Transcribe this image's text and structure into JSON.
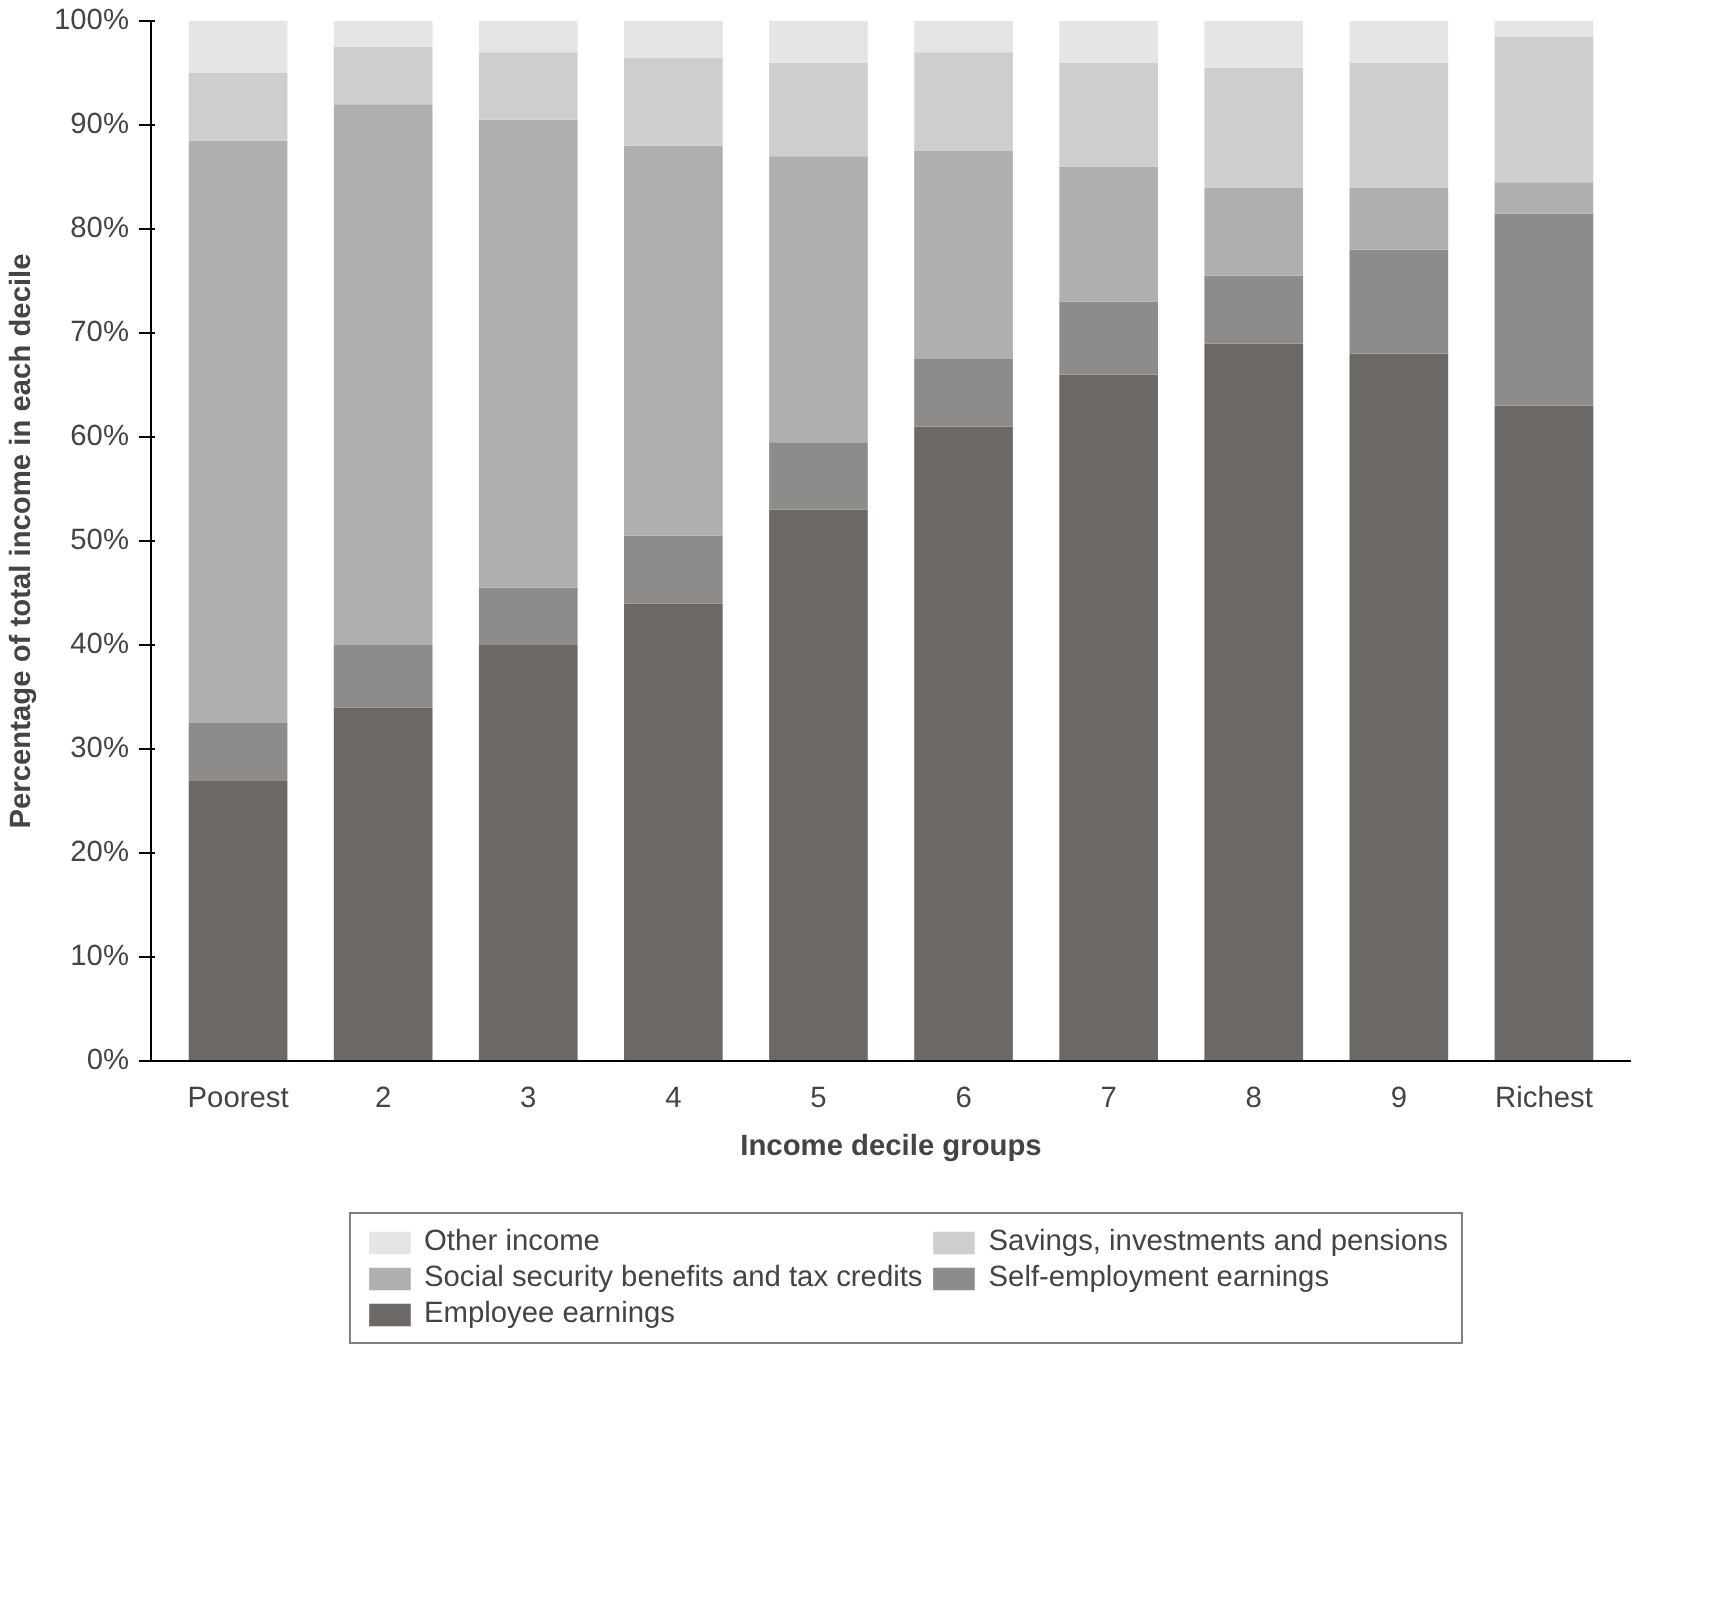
{
  "chart_data": {
    "type": "bar",
    "stacked": true,
    "xlabel": "Income decile groups",
    "ylabel": "Percentage of total income in each decile",
    "categories": [
      "Poorest",
      "2",
      "3",
      "4",
      "5",
      "6",
      "7",
      "8",
      "9",
      "Richest"
    ],
    "series": [
      {
        "name": "Employee earnings",
        "color": "#6b6866",
        "values": [
          27,
          34,
          40,
          44,
          53,
          61,
          66,
          69,
          68,
          63
        ]
      },
      {
        "name": "Self-employment earnings",
        "color": "#8e8c8a",
        "values": [
          5.5,
          6,
          5.5,
          6.5,
          6.5,
          6.5,
          7,
          6.5,
          10,
          18.5
        ]
      },
      {
        "name": "Social security benefits and tax credits",
        "color": "#b0afad",
        "values": [
          56,
          52,
          45,
          37.5,
          27.5,
          20,
          13,
          8.5,
          6,
          3
        ]
      },
      {
        "name": "Savings, investments and pensions",
        "color": "#cfcecc",
        "values": [
          6.5,
          5.5,
          6.5,
          8.5,
          9,
          9.5,
          10,
          11.5,
          12,
          14
        ]
      },
      {
        "name": "Other income",
        "color": "#e6e5e3",
        "values": [
          5,
          2.5,
          3,
          3.5,
          4,
          3,
          4,
          4.5,
          4,
          1.5
        ]
      }
    ],
    "ylim": [
      0,
      100
    ],
    "yticks": [
      {
        "value": 0,
        "label": "0%"
      },
      {
        "value": 10,
        "label": "10%"
      },
      {
        "value": 20,
        "label": "20%"
      },
      {
        "value": 30,
        "label": "30%"
      },
      {
        "value": 40,
        "label": "40%"
      },
      {
        "value": 50,
        "label": "50%"
      },
      {
        "value": 60,
        "label": "60%"
      },
      {
        "value": 70,
        "label": "70%"
      },
      {
        "value": 80,
        "label": "80%"
      },
      {
        "value": 90,
        "label": "90%"
      },
      {
        "value": 100,
        "label": "100%"
      }
    ],
    "grid": false,
    "legend": "bottom"
  }
}
